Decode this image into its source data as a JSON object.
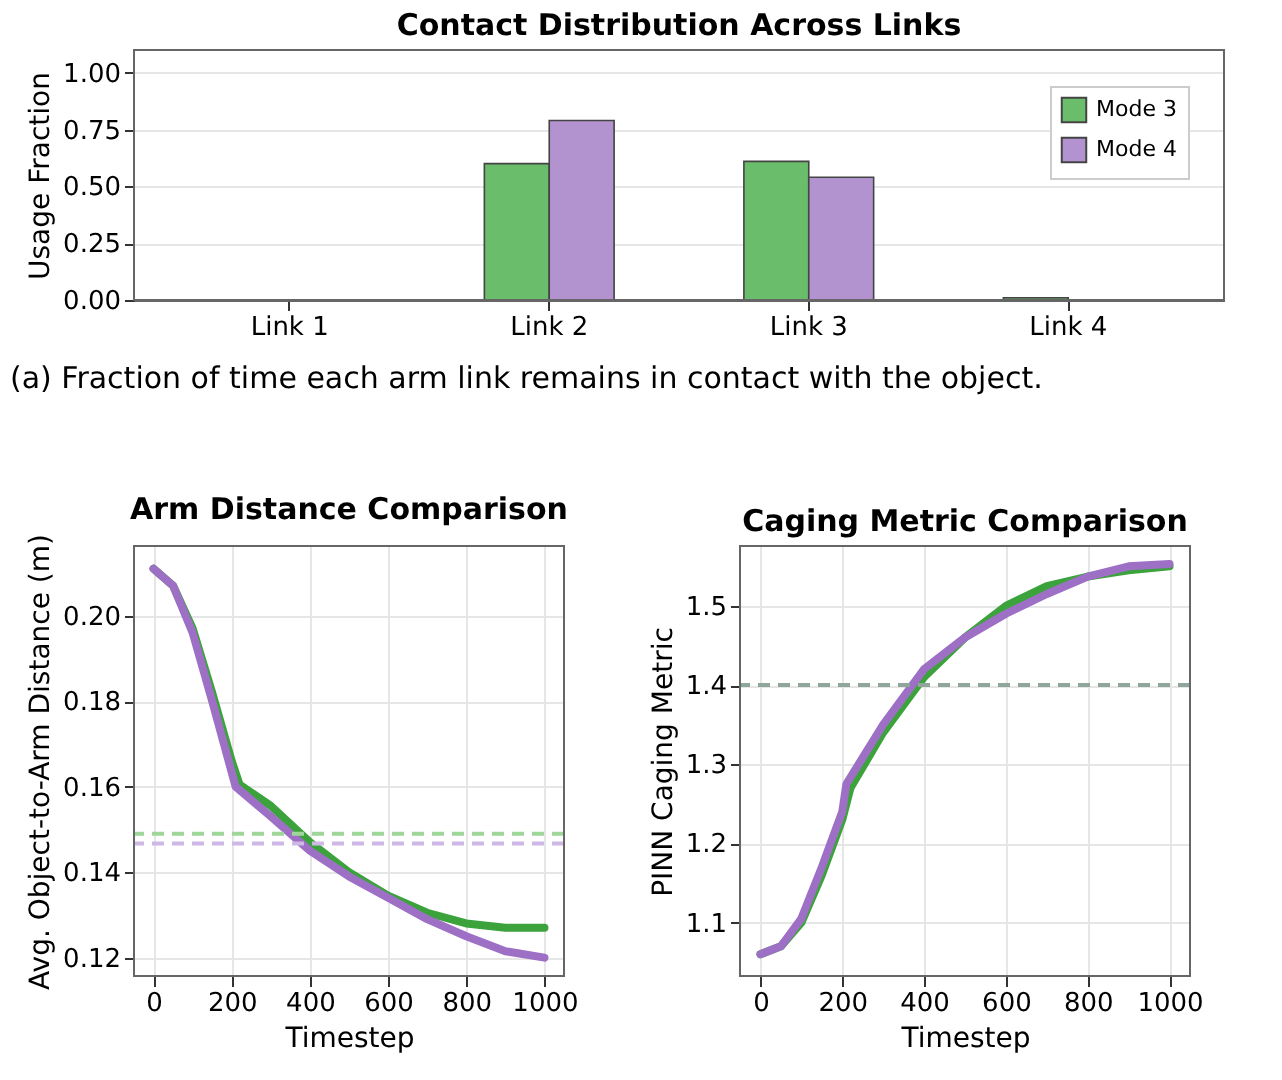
{
  "chart_data": [
    {
      "type": "bar",
      "title": "Contact Distribution Across Links",
      "ylabel": "Usage Fraction",
      "categories": [
        "Link 1",
        "Link 2",
        "Link 3",
        "Link 4"
      ],
      "series": [
        {
          "name": "Mode 3",
          "color": "#6abd6a",
          "values": [
            0,
            0.6,
            0.61,
            0.01
          ]
        },
        {
          "name": "Mode 4",
          "color": "#b293d0",
          "values": [
            0,
            0.79,
            0.54,
            0
          ]
        }
      ],
      "ylim": [
        0,
        1.1
      ],
      "yticks": [
        {
          "value": 0,
          "label": "0.00"
        },
        {
          "value": 0.25,
          "label": "0.25"
        },
        {
          "value": 0.5,
          "label": "0.50"
        },
        {
          "value": 0.75,
          "label": "0.75"
        },
        {
          "value": 1,
          "label": "1.00"
        }
      ],
      "grid": "y",
      "legend": "top right",
      "annotations": [
        "(a) Fraction of time each arm link remains in contact with the object."
      ]
    },
    {
      "type": "line",
      "title": "Arm Distance Comparison",
      "xlabel": "Timestep",
      "ylabel": "Avg. Object-to-Arm Distance (m)",
      "series": [
        {
          "color": "#3ca33c",
          "x": [
            0,
            50,
            100,
            150,
            200,
            220,
            300,
            400,
            500,
            600,
            700,
            800,
            900,
            1000
          ],
          "values": [
            0.211,
            0.207,
            0.197,
            0.182,
            0.166,
            0.1605,
            0.1555,
            0.147,
            0.14,
            0.1345,
            0.1305,
            0.128,
            0.127,
            0.127
          ]
        },
        {
          "color": "#9d70c6",
          "x": [
            0,
            50,
            100,
            150,
            210,
            300,
            400,
            500,
            600,
            700,
            800,
            900,
            1000
          ],
          "values": [
            0.211,
            0.207,
            0.196,
            0.18,
            0.16,
            0.153,
            0.145,
            0.139,
            0.134,
            0.129,
            0.125,
            0.1215,
            0.12
          ]
        }
      ],
      "xlim": [
        -50,
        1050
      ],
      "xticks": [
        0,
        200,
        400,
        600,
        800,
        1000
      ],
      "ylim": [
        0.1157,
        0.2163
      ],
      "yticks": [
        {
          "value": 0.12,
          "label": "0.12"
        },
        {
          "value": 0.14,
          "label": "0.14"
        },
        {
          "value": 0.16,
          "label": "0.16"
        },
        {
          "value": 0.18,
          "label": "0.18"
        },
        {
          "value": 0.2,
          "label": "0.20"
        }
      ],
      "ref_lines": [
        {
          "axis": "y",
          "value": 0.149,
          "color": "#9fd69a",
          "line_style": "dashed"
        },
        {
          "axis": "y",
          "value": 0.1467,
          "color": "#cdb8e6",
          "line_style": "dashed"
        }
      ],
      "grid": true
    },
    {
      "type": "line",
      "title": "Caging Metric Comparison",
      "xlabel": "Timestep",
      "ylabel": "PINN Caging Metric",
      "series": [
        {
          "color": "#3ca33c",
          "x": [
            0,
            50,
            100,
            150,
            200,
            220,
            300,
            400,
            500,
            600,
            700,
            800,
            900,
            1000
          ],
          "values": [
            1.06,
            1.07,
            1.1,
            1.16,
            1.23,
            1.27,
            1.34,
            1.41,
            1.46,
            1.5,
            1.525,
            1.537,
            1.545,
            1.55
          ]
        },
        {
          "color": "#9d70c6",
          "x": [
            0,
            50,
            100,
            150,
            200,
            210,
            300,
            400,
            500,
            600,
            700,
            800,
            900,
            1000
          ],
          "values": [
            1.06,
            1.07,
            1.105,
            1.17,
            1.24,
            1.275,
            1.35,
            1.42,
            1.46,
            1.49,
            1.515,
            1.537,
            1.55,
            1.553
          ]
        }
      ],
      "xlim": [
        -50,
        1050
      ],
      "xticks": [
        0,
        200,
        400,
        600,
        800,
        1000
      ],
      "ylim": [
        1.0325,
        1.5756
      ],
      "yticks": [
        1.1,
        1.2,
        1.3,
        1.4,
        1.5
      ],
      "ref_lines": [
        {
          "axis": "y",
          "value": 1.4,
          "color": "#8fa79a",
          "line_style": "dashed"
        }
      ],
      "grid": true
    }
  ]
}
